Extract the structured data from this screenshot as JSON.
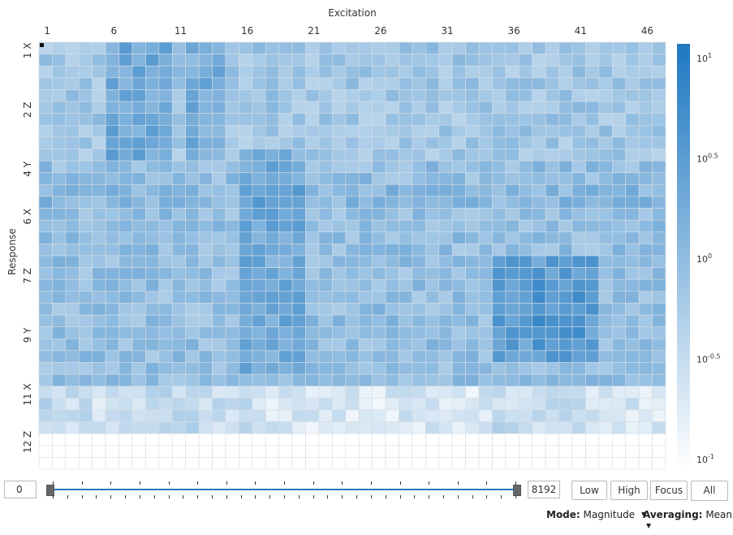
{
  "chart_data": {
    "type": "heatmap",
    "xlabel": "Excitation",
    "ylabel": "Response",
    "x_tick_labels": [
      "1",
      "6",
      "11",
      "16",
      "21",
      "26",
      "31",
      "36",
      "41",
      "46"
    ],
    "y_tick_labels": [
      "1 X",
      "2 Z",
      "4 Y",
      "6 X",
      "7 Z",
      "9 Y",
      "11 X",
      "12 Z"
    ],
    "n_cols": 47,
    "n_rows": 36,
    "colorscale": {
      "type": "log",
      "min": 0.1,
      "max": 10,
      "low_color": "#ffffff",
      "high_color": "#1f78c1"
    },
    "colorbar_tick_labels": [
      "10^1",
      "10^0.5",
      "10^0",
      "10^-0.5",
      "10^-1"
    ]
  },
  "controls": {
    "range_min": "0",
    "range_max": "8192",
    "buttons": [
      "Low",
      "High",
      "Focus",
      "All"
    ]
  },
  "footer": {
    "mode_label": "Mode:",
    "mode_value": "Magnitude",
    "averaging_label": "Averaging:",
    "averaging_value": "Mean"
  },
  "colors": {
    "accent": "#1f78c1",
    "grid": "#d5dde4"
  }
}
